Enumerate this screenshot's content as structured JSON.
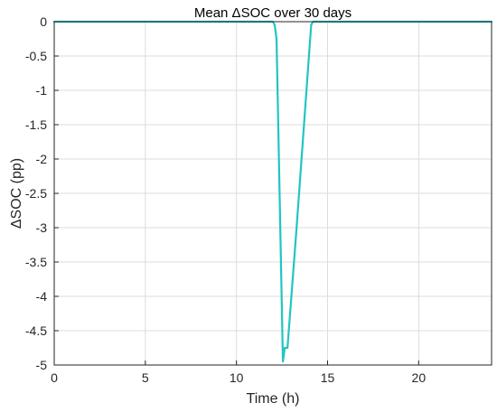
{
  "chart_data": {
    "type": "line",
    "title": "Mean ΔSOC over 30 days",
    "xlabel": "Time (h)",
    "ylabel": "ΔSOC (pp)",
    "xlim": [
      0,
      24
    ],
    "ylim": [
      -5,
      0
    ],
    "xticks": [
      0,
      5,
      10,
      15,
      20
    ],
    "yticks": [
      0,
      -0.5,
      -1,
      -1.5,
      -2,
      -2.5,
      -3,
      -3.5,
      -4,
      -4.5,
      -5
    ],
    "grid": true,
    "series": [
      {
        "color": "#22c4c4",
        "x": [
          0,
          12.0,
          12.1,
          12.2,
          12.55,
          12.65,
          12.8,
          13.3,
          14.1,
          14.2,
          24
        ],
        "y": [
          0,
          0,
          -0.05,
          -0.25,
          -4.95,
          -4.75,
          -4.75,
          -3.0,
          -0.05,
          0,
          0
        ]
      }
    ]
  }
}
